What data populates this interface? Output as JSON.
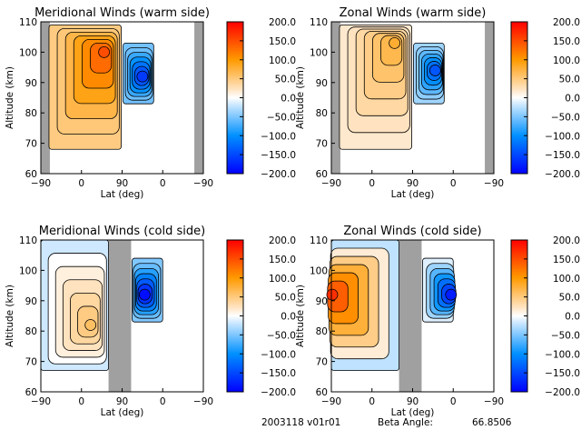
{
  "footer": {
    "date_version": "2003118 v01r01",
    "beta_label": "Beta Angle:",
    "beta_value": "66.8506"
  },
  "chart_data": [
    {
      "type": "heatmap",
      "title": "Meridional Winds (warm side)",
      "xlabel": "Lat (deg)",
      "ylabel": "Altitude (km)",
      "x_ticks": [
        "-90",
        "0",
        "90",
        "0",
        "-90"
      ],
      "y_ticks": [
        60,
        70,
        80,
        90,
        100,
        110
      ],
      "ylim": [
        60,
        110
      ],
      "colorbar": {
        "ticks": [
          "200.0",
          "150.0",
          "100.0",
          "50.0",
          "0.0",
          "-50.0",
          "-100.0",
          "-150.0",
          "-200.0"
        ],
        "range": [
          -200,
          200
        ]
      },
      "no_data_bands": [
        [
          -90,
          -70
        ],
        [
          70,
          90
        ]
      ],
      "gap_bands": [],
      "regions": [
        {
          "lat": [
            -72,
            88
          ],
          "alt": [
            68,
            109
          ],
          "value": 80,
          "peak": 150,
          "peak_lat": 50,
          "peak_alt": 100
        },
        {
          "lat": [
            92,
            160
          ],
          "alt": [
            83,
            103
          ],
          "value": -90,
          "peak": -160,
          "peak_lat": 135,
          "peak_alt": 92
        }
      ]
    },
    {
      "type": "heatmap",
      "title": "Zonal Winds (warm side)",
      "xlabel": "Lat (deg)",
      "ylabel": "Altitude (km)",
      "x_ticks": [
        "-90",
        "0",
        "90",
        "0",
        "-90"
      ],
      "y_ticks": [
        60,
        70,
        80,
        90,
        100,
        110
      ],
      "ylim": [
        60,
        110
      ],
      "colorbar": {
        "ticks": [
          "200.0",
          "150.0",
          "100.0",
          "50.0",
          "0.0",
          "-50.0",
          "-100.0",
          "-150.0",
          "-200.0"
        ],
        "range": [
          -200,
          200
        ]
      },
      "no_data_bands": [
        [
          -90,
          -70
        ],
        [
          70,
          90
        ]
      ],
      "gap_bands": [],
      "regions": [
        {
          "lat": [
            -72,
            88
          ],
          "alt": [
            68,
            109
          ],
          "value": 30,
          "peak": 80,
          "peak_lat": 50,
          "peak_alt": 103
        },
        {
          "lat": [
            92,
            160
          ],
          "alt": [
            83,
            103
          ],
          "value": -60,
          "peak": -140,
          "peak_lat": 140,
          "peak_alt": 94
        }
      ]
    },
    {
      "type": "heatmap",
      "title": "Meridional Winds (cold side)",
      "xlabel": "Lat (deg)",
      "ylabel": "Altitude (km)",
      "x_ticks": [
        "-90",
        "0",
        "90",
        "0",
        "-90"
      ],
      "y_ticks": [
        60,
        70,
        80,
        90,
        100,
        110
      ],
      "ylim": [
        60,
        110
      ],
      "colorbar": {
        "ticks": [
          "200.0",
          "150.0",
          "100.0",
          "50.0",
          "0.0",
          "-50.0",
          "-100.0",
          "-150.0",
          "-200.0"
        ],
        "range": [
          -200,
          200
        ]
      },
      "no_data_bands": [],
      "gap_bands": [
        [
          60,
          110
        ]
      ],
      "regions": [
        {
          "lat": [
            -90,
            60
          ],
          "alt": [
            67,
            110
          ],
          "value": -30,
          "peak": 60,
          "peak_lat": 20,
          "peak_alt": 82
        },
        {
          "lat": [
            112,
            180
          ],
          "alt": [
            83,
            104
          ],
          "value": -80,
          "peak": -190,
          "peak_lat": 140,
          "peak_alt": 92
        }
      ]
    },
    {
      "type": "heatmap",
      "title": "Zonal Winds (cold side)",
      "xlabel": "Lat (deg)",
      "ylabel": "Altitude (km)",
      "x_ticks": [
        "-90",
        "0",
        "90",
        "0",
        "-90"
      ],
      "y_ticks": [
        60,
        70,
        80,
        90,
        100,
        110
      ],
      "ylim": [
        60,
        110
      ],
      "colorbar": {
        "ticks": [
          "200.0",
          "150.0",
          "100.0",
          "50.0",
          "0.0",
          "-50.0",
          "-100.0",
          "-150.0",
          "-200.0"
        ],
        "range": [
          -200,
          200
        ]
      },
      "no_data_bands": [],
      "gap_bands": [
        [
          60,
          110
        ]
      ],
      "regions": [
        {
          "lat": [
            -90,
            60
          ],
          "alt": [
            67,
            110
          ],
          "value": -40,
          "peak": 170,
          "peak_lat": -88,
          "peak_alt": 92
        },
        {
          "lat": [
            112,
            180
          ],
          "alt": [
            83,
            104
          ],
          "value": -20,
          "peak": -180,
          "peak_lat": 175,
          "peak_alt": 92
        }
      ]
    }
  ]
}
